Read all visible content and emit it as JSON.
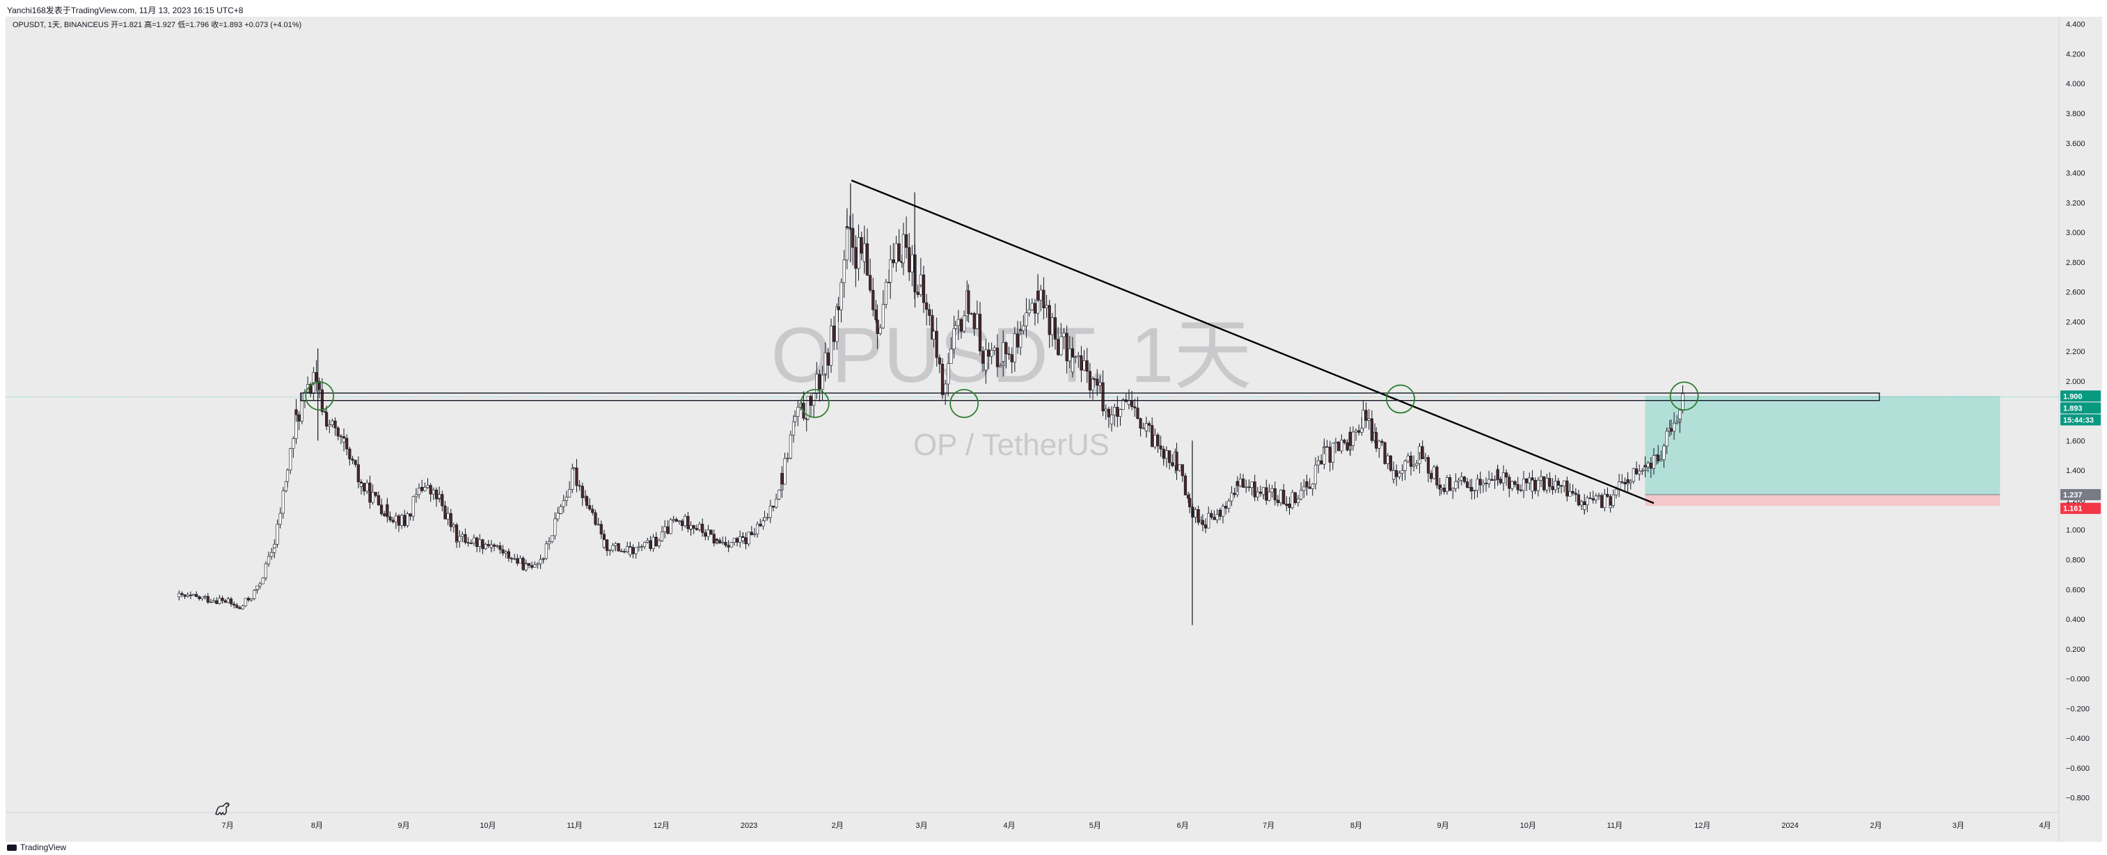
{
  "header": {
    "author_line": "Yanchi168发表于TradingView.com,  11月 13, 2023 16:15 UTC+8"
  },
  "legend_line": "OPUSDT, 1天, BINANCEUS  开=1.821  高=1.927  低=1.796  收=1.893  +0.073 (+4.01%)",
  "watermark": {
    "symbol": "OPUSDT, 1天",
    "pair": "OP / TetherUS"
  },
  "footer": {
    "brand": "TradingView"
  },
  "icons": {
    "logo": "tradingview-logo-icon",
    "dino": "dinosaur-icon"
  },
  "colors": {
    "background": "#ebebeb",
    "up": "#ffffff",
    "down": "#4a2828",
    "wick": "#131722",
    "trendline": "#000000",
    "profit_zone": "#b2dfd8",
    "loss_zone": "#f4c7cb",
    "circle": "#2e7d32",
    "price_line": "#26a69a"
  },
  "chart_data": {
    "type": "candlestick",
    "symbol": "OPUSDT",
    "interval": "1天",
    "exchange": "BINANCEUS",
    "last_ohlc": {
      "open": 1.821,
      "high": 1.927,
      "low": 1.796,
      "close": 1.893,
      "change": 0.073,
      "change_pct": 4.01
    },
    "ylim": [
      -0.9,
      4.45
    ],
    "yticks": [
      "4.400",
      "4.200",
      "4.000",
      "3.800",
      "3.600",
      "3.400",
      "3.200",
      "3.000",
      "2.800",
      "2.600",
      "2.400",
      "2.200",
      "2.000",
      "1.800",
      "1.600",
      "1.400",
      "1.200",
      "1.000",
      "0.800",
      "0.600",
      "0.400",
      "0.200",
      "−0.000",
      "−0.200",
      "−0.400",
      "−0.600",
      "−0.800"
    ],
    "xlim": [
      0,
      23.67
    ],
    "xticks": [
      {
        "label": "7月",
        "t": 2.56
      },
      {
        "label": "8月",
        "t": 3.59
      },
      {
        "label": "9月",
        "t": 4.59
      },
      {
        "label": "10月",
        "t": 5.56
      },
      {
        "label": "11月",
        "t": 6.56
      },
      {
        "label": "12月",
        "t": 7.56
      },
      {
        "label": "2023",
        "t": 8.57
      },
      {
        "label": "2月",
        "t": 9.59
      },
      {
        "label": "3月",
        "t": 10.56
      },
      {
        "label": "4月",
        "t": 11.57
      },
      {
        "label": "5月",
        "t": 12.56
      },
      {
        "label": "6月",
        "t": 13.57
      },
      {
        "label": "7月",
        "t": 14.56
      },
      {
        "label": "8月",
        "t": 15.57
      },
      {
        "label": "9月",
        "t": 16.57
      },
      {
        "label": "10月",
        "t": 17.55
      },
      {
        "label": "11月",
        "t": 18.55
      },
      {
        "label": "12月",
        "t": 19.56
      },
      {
        "label": "2024",
        "t": 20.57
      },
      {
        "label": "2月",
        "t": 21.56
      },
      {
        "label": "3月",
        "t": 22.51
      },
      {
        "label": "4月",
        "t": 23.51
      },
      {
        "label": "5月",
        "t": 24.51
      }
    ],
    "price_path": [
      {
        "t": 2.0,
        "p": 0.55
      },
      {
        "t": 2.5,
        "p": 0.53
      },
      {
        "t": 2.7,
        "p": 0.47
      },
      {
        "t": 2.9,
        "p": 0.6
      },
      {
        "t": 3.1,
        "p": 0.9
      },
      {
        "t": 3.25,
        "p": 1.4
      },
      {
        "t": 3.35,
        "p": 1.75
      },
      {
        "t": 3.55,
        "p": 2.0
      },
      {
        "t": 3.7,
        "p": 1.75
      },
      {
        "t": 3.9,
        "p": 1.55
      },
      {
        "t": 4.1,
        "p": 1.3
      },
      {
        "t": 4.4,
        "p": 1.12
      },
      {
        "t": 4.6,
        "p": 1.05
      },
      {
        "t": 4.8,
        "p": 1.3
      },
      {
        "t": 5.0,
        "p": 1.2
      },
      {
        "t": 5.2,
        "p": 0.95
      },
      {
        "t": 5.6,
        "p": 0.9
      },
      {
        "t": 5.8,
        "p": 0.83
      },
      {
        "t": 6.0,
        "p": 0.75
      },
      {
        "t": 6.2,
        "p": 0.82
      },
      {
        "t": 6.4,
        "p": 1.15
      },
      {
        "t": 6.55,
        "p": 1.38
      },
      {
        "t": 6.7,
        "p": 1.2
      },
      {
        "t": 6.9,
        "p": 0.9
      },
      {
        "t": 7.2,
        "p": 0.85
      },
      {
        "t": 7.5,
        "p": 0.92
      },
      {
        "t": 7.7,
        "p": 1.05
      },
      {
        "t": 7.9,
        "p": 1.05
      },
      {
        "t": 8.2,
        "p": 0.92
      },
      {
        "t": 8.5,
        "p": 0.92
      },
      {
        "t": 8.75,
        "p": 1.05
      },
      {
        "t": 8.95,
        "p": 1.35
      },
      {
        "t": 9.1,
        "p": 1.75
      },
      {
        "t": 9.25,
        "p": 1.82
      },
      {
        "t": 9.45,
        "p": 2.1
      },
      {
        "t": 9.6,
        "p": 2.5
      },
      {
        "t": 9.7,
        "p": 2.95
      },
      {
        "t": 9.9,
        "p": 2.8
      },
      {
        "t": 10.05,
        "p": 2.4
      },
      {
        "t": 10.2,
        "p": 2.7
      },
      {
        "t": 10.35,
        "p": 2.95
      },
      {
        "t": 10.55,
        "p": 2.6
      },
      {
        "t": 10.7,
        "p": 2.3
      },
      {
        "t": 10.8,
        "p": 1.95
      },
      {
        "t": 10.95,
        "p": 2.3
      },
      {
        "t": 11.1,
        "p": 2.55
      },
      {
        "t": 11.3,
        "p": 2.15
      },
      {
        "t": 11.5,
        "p": 2.2
      },
      {
        "t": 11.7,
        "p": 2.25
      },
      {
        "t": 11.9,
        "p": 2.62
      },
      {
        "t": 12.1,
        "p": 2.3
      },
      {
        "t": 12.3,
        "p": 2.15
      },
      {
        "t": 12.55,
        "p": 2.0
      },
      {
        "t": 12.75,
        "p": 1.75
      },
      {
        "t": 12.95,
        "p": 1.82
      },
      {
        "t": 13.15,
        "p": 1.65
      },
      {
        "t": 13.35,
        "p": 1.55
      },
      {
        "t": 13.5,
        "p": 1.45
      },
      {
        "t": 13.65,
        "p": 1.15
      },
      {
        "t": 13.8,
        "p": 1.05
      },
      {
        "t": 14.0,
        "p": 1.1
      },
      {
        "t": 14.2,
        "p": 1.3
      },
      {
        "t": 14.5,
        "p": 1.25
      },
      {
        "t": 14.8,
        "p": 1.2
      },
      {
        "t": 15.0,
        "p": 1.3
      },
      {
        "t": 15.2,
        "p": 1.5
      },
      {
        "t": 15.5,
        "p": 1.6
      },
      {
        "t": 15.65,
        "p": 1.75
      },
      {
        "t": 15.8,
        "p": 1.6
      },
      {
        "t": 16.0,
        "p": 1.4
      },
      {
        "t": 16.3,
        "p": 1.5
      },
      {
        "t": 16.55,
        "p": 1.3
      },
      {
        "t": 16.9,
        "p": 1.3
      },
      {
        "t": 17.2,
        "p": 1.35
      },
      {
        "t": 17.6,
        "p": 1.3
      },
      {
        "t": 17.9,
        "p": 1.3
      },
      {
        "t": 18.2,
        "p": 1.18
      },
      {
        "t": 18.5,
        "p": 1.2
      },
      {
        "t": 18.7,
        "p": 1.35
      },
      {
        "t": 18.9,
        "p": 1.4
      },
      {
        "t": 19.05,
        "p": 1.5
      },
      {
        "t": 19.2,
        "p": 1.65
      },
      {
        "t": 19.3,
        "p": 1.8
      },
      {
        "t": 19.35,
        "p": 1.893
      }
    ],
    "spikes": [
      {
        "t": 3.6,
        "high": 2.22,
        "low": 1.6
      },
      {
        "t": 10.48,
        "high": 3.27,
        "low": 2.55
      },
      {
        "t": 13.68,
        "high": 1.6,
        "low": 0.36
      },
      {
        "t": 9.74,
        "high": 3.33,
        "low": 2.8
      }
    ],
    "trendline": {
      "t1": 9.75,
      "p1": 3.35,
      "t2": 19.0,
      "p2": 1.18
    },
    "resistance_band": {
      "t1": 3.4,
      "t2": 21.6,
      "p_low": 1.87,
      "p_high": 1.92
    },
    "circles": [
      {
        "t": 3.62,
        "p": 1.9
      },
      {
        "t": 9.33,
        "p": 1.85
      },
      {
        "t": 11.05,
        "p": 1.85
      },
      {
        "t": 16.08,
        "p": 1.88
      },
      {
        "t": 19.35,
        "p": 1.9
      }
    ],
    "position": {
      "t1": 18.9,
      "t2": 22.99,
      "entry": 1.237,
      "target": 1.9,
      "stop": 1.161
    },
    "price_labels": [
      {
        "value": "1.900",
        "p": 1.9,
        "bg": "#089981"
      },
      {
        "value": "1.893",
        "p": 1.82,
        "bg": "#089981"
      },
      {
        "value": "15:44:33",
        "p": 1.74,
        "bg": "#089981"
      },
      {
        "value": "1.237",
        "p": 1.237,
        "bg": "#787b86"
      },
      {
        "value": "1.161",
        "p": 1.145,
        "bg": "#f23645"
      }
    ]
  }
}
